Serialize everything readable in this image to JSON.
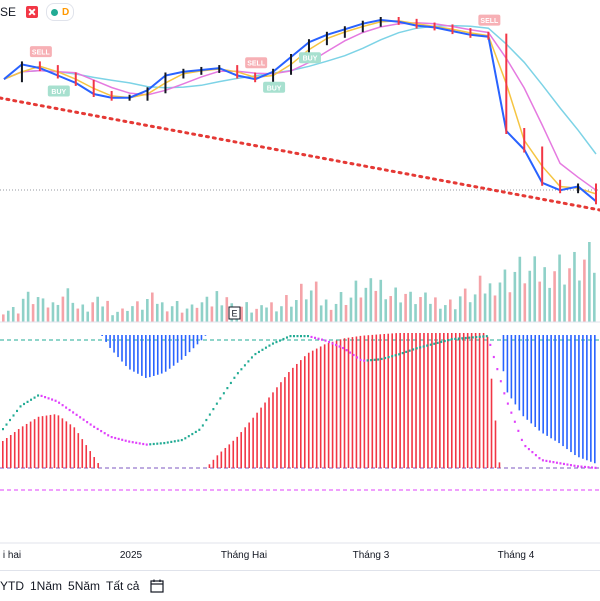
{
  "header": {
    "title_fragment": "SE",
    "badge_letter": "D"
  },
  "timeline": {
    "labels": [
      "i hai",
      "2025",
      "Tháng Hai",
      "Tháng 3",
      "Tháng 4"
    ]
  },
  "toolbar": {
    "ranges": [
      "YTD",
      "1Năm",
      "5Năm",
      "Tất cả"
    ]
  },
  "volume": {
    "event_marker": "E"
  },
  "colors": {
    "up": "#22ab94",
    "down": "#f23645",
    "price_line": "#2962ff",
    "ma_fast": "#f5c542",
    "ma_mid": "#e57ae0",
    "ma_slow": "#7dd3e6",
    "trend": "#e53935",
    "vol_up": "#8fd1c8",
    "vol_down": "#f5a3a8",
    "osc_green": "#22ab94",
    "osc_magenta": "#e040fb",
    "hist_red": "#f23645",
    "hist_blue": "#2962ff"
  },
  "signals": [
    {
      "label": "SELL",
      "kind": "sell"
    },
    {
      "label": "BUY",
      "kind": "buy"
    },
    {
      "label": "SELL",
      "kind": "sell"
    },
    {
      "label": "BUY",
      "kind": "buy"
    },
    {
      "label": "BUY",
      "kind": "buy"
    },
    {
      "label": "SELL",
      "kind": "sell"
    }
  ],
  "chart_data": {
    "type": "line",
    "x_labels": [
      "i hai",
      "2025",
      "Tháng Hai",
      "Tháng 3",
      "Tháng 4"
    ],
    "series": [
      {
        "values": [
          68,
          76,
          74,
          70,
          66,
          60,
          58,
          58,
          62,
          70,
          72,
          73,
          74,
          70,
          68,
          72,
          80,
          88,
          92,
          95,
          98,
          100,
          99,
          97,
          96,
          94,
          92,
          91,
          40,
          30,
          12,
          8,
          10,
          2
        ]
      }
    ],
    "volume": [
      20,
      38,
      28,
      45,
      22,
      30,
      18,
      26,
      35,
      28,
      22,
      30,
      44,
      25,
      20,
      28,
      36,
      48,
      32,
      40,
      52,
      60,
      46,
      38,
      35,
      30,
      42,
      55,
      70,
      82,
      78,
      90,
      88,
      95
    ],
    "oscillator": {
      "signal_line": [
        40,
        55,
        62,
        58,
        50,
        42,
        35,
        32,
        30,
        31,
        33,
        40,
        58,
        75,
        88,
        95,
        100,
        100,
        97,
        92,
        84,
        85,
        88,
        92,
        95,
        98,
        99,
        100,
        60,
        30,
        20,
        18,
        16,
        15
      ],
      "histogram": [
        20,
        30,
        38,
        40,
        30,
        10,
        -10,
        -25,
        -32,
        -28,
        -18,
        -5,
        10,
        22,
        38,
        55,
        72,
        85,
        92,
        96,
        98,
        99,
        100,
        100,
        100,
        100,
        100,
        100,
        -40,
        -60,
        -72,
        -80,
        -90,
        -95
      ]
    }
  }
}
